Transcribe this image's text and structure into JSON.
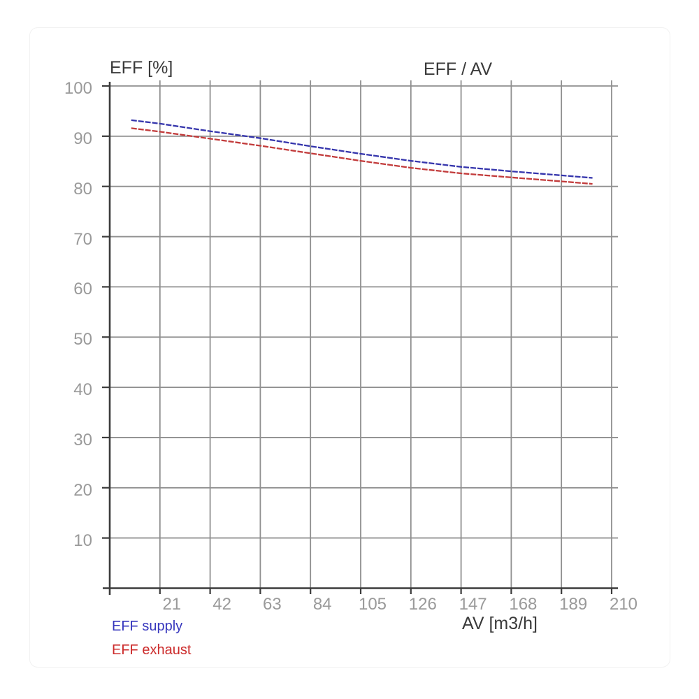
{
  "colors": {
    "grid": "#8f8f8f",
    "axis": "#3c3c3c",
    "tick_label": "#9a9a9a",
    "title_text": "#3a3a3a",
    "supply_line": "#3535ac",
    "exhaust_line": "#c23b3b",
    "supply_legend_text": "#3636bd",
    "exhaust_legend_text": "#cc2b2b"
  },
  "chart_data": {
    "type": "line",
    "title": "EFF / AV",
    "y_axis_label": "EFF [%]",
    "x_axis_label": "AV [m3/h]",
    "xlim": [
      0,
      210
    ],
    "ylim": [
      0,
      100
    ],
    "x_ticks": [
      21,
      42,
      63,
      84,
      105,
      126,
      147,
      168,
      189,
      210
    ],
    "y_ticks": [
      10,
      20,
      30,
      40,
      50,
      60,
      70,
      80,
      90,
      100
    ],
    "grid": true,
    "x": [
      9,
      21,
      42,
      63,
      84,
      105,
      126,
      147,
      168,
      189,
      202
    ],
    "series": [
      {
        "name": "EFF supply",
        "color": "#3535ac",
        "values": [
          93.2,
          92.5,
          91.0,
          89.6,
          88.0,
          86.5,
          85.1,
          83.9,
          83.0,
          82.2,
          81.7
        ]
      },
      {
        "name": "EFF exhaust",
        "color": "#c23b3b",
        "values": [
          91.6,
          90.9,
          89.5,
          88.1,
          86.6,
          85.1,
          83.7,
          82.6,
          81.8,
          81.0,
          80.5
        ]
      }
    ],
    "legend": {
      "position": "bottom-left",
      "items": [
        {
          "label": "EFF supply",
          "color": "#3636bd"
        },
        {
          "label": "EFF exhaust",
          "color": "#cc2b2b"
        }
      ]
    }
  }
}
